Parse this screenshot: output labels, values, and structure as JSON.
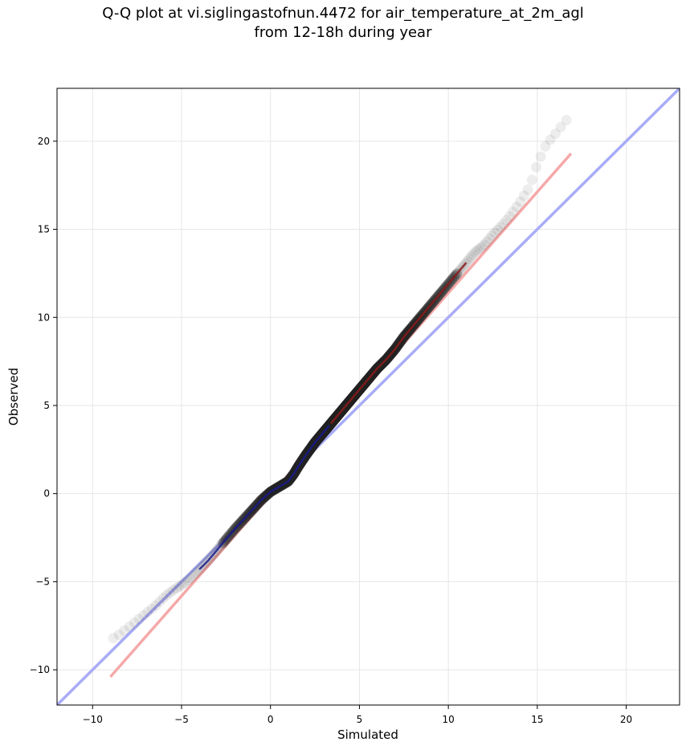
{
  "chart_data": {
    "type": "scatter",
    "title_lines": [
      "Q-Q plot at vi.siglingastofnun.4472 for air_temperature_at_2m_agl",
      "from 12-18h during year"
    ],
    "xlabel": "Simulated",
    "ylabel": "Observed",
    "xlim": [
      -12,
      23
    ],
    "ylim": [
      -12,
      23
    ],
    "xticks": [
      -10,
      -5,
      0,
      5,
      10,
      15,
      20
    ],
    "yticks": [
      -10,
      -5,
      0,
      5,
      10,
      15,
      20
    ],
    "xtick_labels": [
      "−10",
      "−5",
      "0",
      "5",
      "10",
      "15",
      "20"
    ],
    "ytick_labels": [
      "−10",
      "−5",
      "0",
      "5",
      "10",
      "15",
      "20"
    ],
    "grid": true,
    "colors": {
      "identity_line": "#a8acf7",
      "fit_line": "#f5a9a9",
      "points": "#222222",
      "central_blue": "#1a1a8c",
      "central_red": "#8c1a1a"
    },
    "reference_lines": [
      {
        "kind": "identity",
        "x": [
          -12,
          23
        ],
        "y": [
          -12,
          23
        ]
      },
      {
        "kind": "fit",
        "x": [
          -9,
          16.9
        ],
        "y": [
          -10.4,
          19.3
        ]
      }
    ],
    "quantile_curve": {
      "x": [
        -9,
        -8.5,
        -8,
        -7.5,
        -7,
        -6.5,
        -6,
        -5.5,
        -5,
        -4.5,
        -4,
        -3.5,
        -3,
        -2.5,
        -2,
        -1.5,
        -1,
        -0.5,
        0,
        0.5,
        1,
        1.3,
        1.6,
        2,
        2.5,
        3,
        3.5,
        4,
        4.5,
        5,
        5.5,
        6,
        6.5,
        7,
        7.5,
        8,
        8.5,
        9,
        9.5,
        10,
        10.5,
        11,
        11.5,
        12,
        12.5,
        13,
        13.5,
        14,
        14.5,
        14.7,
        15,
        15.5,
        16,
        16.8
      ],
      "y": [
        -8.3,
        -8.0,
        -7.6,
        -7.2,
        -6.8,
        -6.4,
        -5.9,
        -5.5,
        -5.2,
        -4.8,
        -4.3,
        -3.8,
        -3.2,
        -2.6,
        -2.0,
        -1.45,
        -0.9,
        -0.35,
        0.1,
        0.4,
        0.7,
        1.1,
        1.6,
        2.2,
        2.9,
        3.5,
        4.1,
        4.7,
        5.3,
        5.9,
        6.5,
        7.1,
        7.6,
        8.2,
        8.9,
        9.5,
        10.1,
        10.7,
        11.3,
        11.9,
        12.5,
        13.1,
        13.7,
        14.1,
        14.7,
        15.2,
        15.8,
        16.5,
        17.3,
        17.8,
        18.7,
        19.8,
        20.4,
        21.4
      ]
    },
    "point_count_visible": "dense"
  }
}
